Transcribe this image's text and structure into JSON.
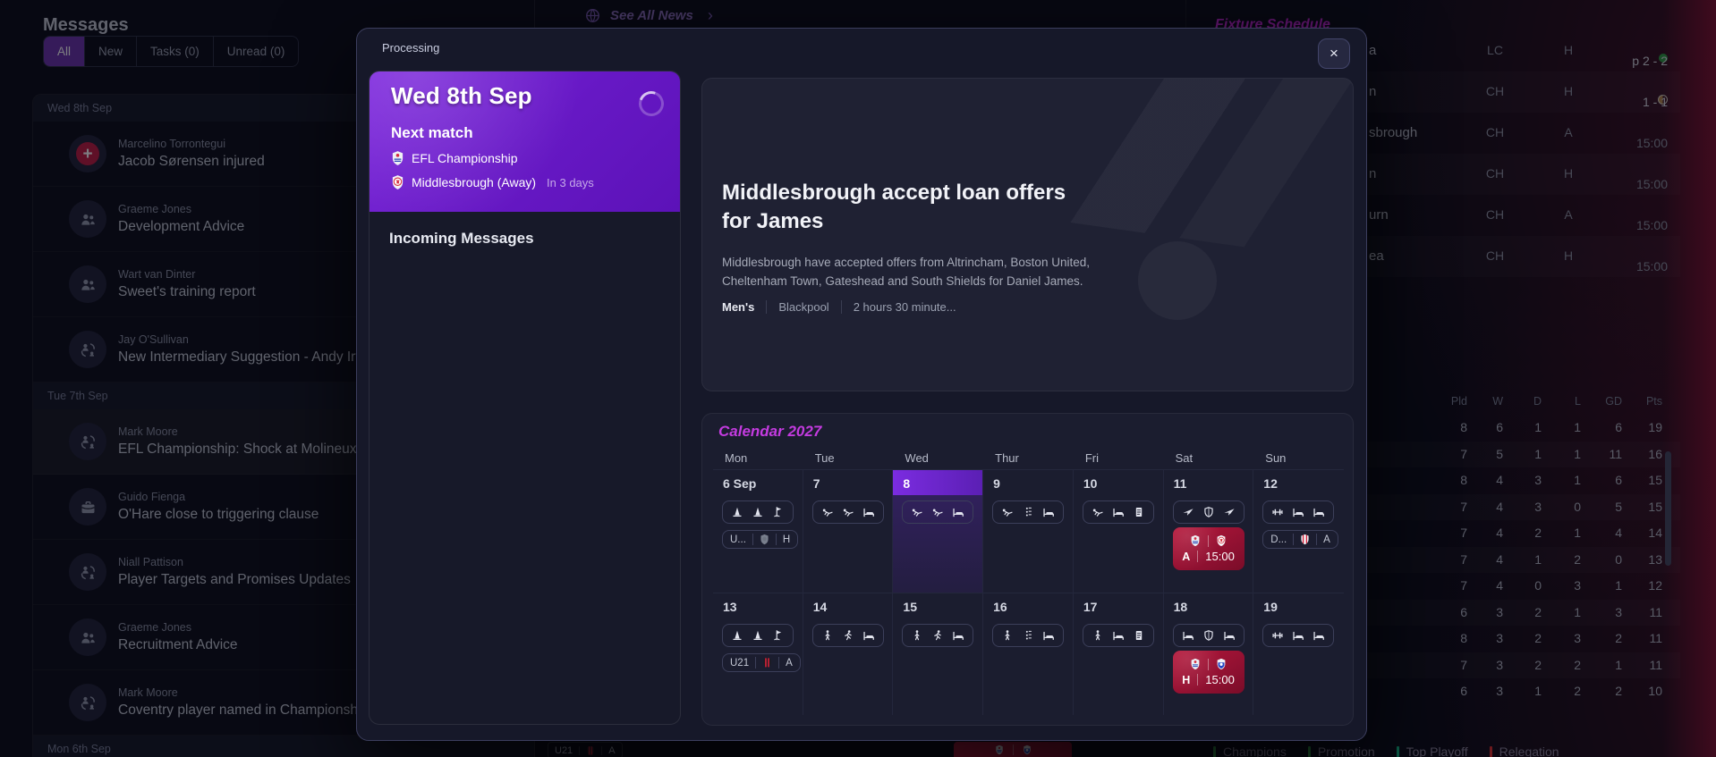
{
  "colors": {
    "accent_purple": "#7b24dd",
    "magenta": "#c43be0",
    "match_red": "#a81232",
    "win_green": "#2f9e44",
    "promotion_green": "#2f9e44",
    "playoff_teal": "#12b886",
    "relegation_red": "#e03131"
  },
  "background": {
    "messages": {
      "title": "Messages",
      "tabs": [
        {
          "label": "All",
          "selected": true
        },
        {
          "label": "New",
          "selected": false
        },
        {
          "label": "Tasks (0)",
          "selected": false
        },
        {
          "label": "Unread (0)",
          "selected": false
        }
      ],
      "groups": [
        {
          "date": "Wed 8th Sep",
          "items": [
            {
              "sender": "Marcelino Torrontegui",
              "subject": "Jacob Sørensen injured",
              "icon": "injury",
              "selected": false
            },
            {
              "sender": "Graeme Jones",
              "subject": "Development Advice",
              "icon": "people",
              "selected": false
            },
            {
              "sender": "Wart van Dinter",
              "subject": "Sweet's training report",
              "icon": "people",
              "selected": false
            },
            {
              "sender": "Jay O'Sullivan",
              "subject": "New Intermediary Suggestion - Andy Irv",
              "icon": "transfer",
              "selected": false
            }
          ]
        },
        {
          "date": "Tue 7th Sep",
          "items": [
            {
              "sender": "Mark Moore",
              "subject": "EFL Championship: Shock at Molineux",
              "icon": "transfer",
              "selected": true
            },
            {
              "sender": "Guido Fienga",
              "subject": "O'Hare close to triggering clause",
              "icon": "briefcase",
              "selected": false
            },
            {
              "sender": "Niall Pattison",
              "subject": "Player Targets and Promises Updates",
              "icon": "transfer",
              "selected": false
            },
            {
              "sender": "Graeme Jones",
              "subject": "Recruitment Advice",
              "icon": "people",
              "selected": false
            },
            {
              "sender": "Mark Moore",
              "subject": "Coventry player named in Championshi",
              "icon": "transfer",
              "selected": false
            }
          ]
        },
        {
          "date": "Mon 6th Sep",
          "items": []
        }
      ]
    },
    "news_bar": {
      "label": "See All News",
      "chevron": "›"
    },
    "fixture_schedule": {
      "title": "Fixture Schedule",
      "rows": [
        {
          "opponent": "a",
          "comp": "LC",
          "venue": "H",
          "result": "p 2 - 2",
          "indicator": "win"
        },
        {
          "opponent": "n",
          "comp": "CH",
          "venue": "H",
          "result": "1 - 1",
          "indicator": "draw"
        },
        {
          "opponent": "sbrough",
          "comp": "CH",
          "venue": "A",
          "result": "15:00",
          "indicator": "none"
        },
        {
          "opponent": "n",
          "comp": "CH",
          "venue": "H",
          "result": "15:00",
          "indicator": "none"
        },
        {
          "opponent": "urn",
          "comp": "CH",
          "venue": "A",
          "result": "15:00",
          "indicator": "none"
        },
        {
          "opponent": "ea",
          "comp": "CH",
          "venue": "H",
          "result": "15:00",
          "indicator": "none"
        }
      ]
    },
    "league_table": {
      "headers": [
        "Pld",
        "W",
        "D",
        "L",
        "GD",
        "Pts"
      ],
      "rows": [
        [
          8,
          6,
          1,
          1,
          6,
          19
        ],
        [
          7,
          5,
          1,
          1,
          11,
          16
        ],
        [
          8,
          4,
          3,
          1,
          6,
          15
        ],
        [
          7,
          4,
          3,
          0,
          5,
          15
        ],
        [
          7,
          4,
          2,
          1,
          4,
          14
        ],
        [
          7,
          4,
          1,
          2,
          0,
          13
        ],
        [
          7,
          4,
          0,
          3,
          1,
          12
        ],
        [
          6,
          3,
          2,
          1,
          3,
          11
        ],
        [
          8,
          3,
          2,
          3,
          2,
          11
        ],
        [
          7,
          3,
          2,
          2,
          1,
          11
        ],
        [
          6,
          3,
          1,
          2,
          2,
          10
        ]
      ],
      "legend": [
        {
          "label": "Champions",
          "color": "#2f9e44"
        },
        {
          "label": "Promotion",
          "color": "#2f9e44"
        },
        {
          "label": "Top Playoff",
          "color": "#12b886"
        },
        {
          "label": "Relegation",
          "color": "#e03131"
        }
      ]
    },
    "bottom_strip": {
      "pill": [
        "U21",
        "crest-bournemouth",
        "A"
      ]
    }
  },
  "modal": {
    "status": "Processing",
    "close_label": "×",
    "next_match": {
      "date": "Wed 8th Sep",
      "heading": "Next match",
      "competition": "EFL Championship",
      "opponent": "Middlesbrough (Away)",
      "countdown": "In 3 days"
    },
    "incoming": {
      "heading": "Incoming Messages"
    },
    "news": {
      "title": "Middlesbrough accept loan offers for James",
      "body": "Middlesbrough have accepted offers from Altrincham, Boston United, Cheltenham Town, Gateshead and South Shields for Daniel James.",
      "tags": [
        "Men's",
        "Blackpool",
        "2 hours 30 minute..."
      ]
    },
    "calendar": {
      "title": "Calendar 2027",
      "days": [
        "Mon",
        "Tue",
        "Wed",
        "Thur",
        "Fri",
        "Sat",
        "Sun"
      ],
      "cells": [
        {
          "date": "6 Sep",
          "icons": [
            "cone",
            "cone",
            "flag"
          ],
          "strip": [
            "U...",
            "crest-grey",
            "H"
          ]
        },
        {
          "date": "7",
          "icons": [
            "stretch",
            "stretch",
            "bed"
          ]
        },
        {
          "date": "8",
          "highlight": true,
          "icons": [
            "stretch",
            "stretch",
            "bed"
          ]
        },
        {
          "date": "9",
          "icons": [
            "stretch",
            "drill",
            "bed"
          ]
        },
        {
          "date": "10",
          "icons": [
            "stretch",
            "bed",
            "doc"
          ]
        },
        {
          "date": "11",
          "icons": [
            "plane",
            "shield",
            "plane"
          ],
          "match": {
            "badge": "crest-efl",
            "crest": "crest-boro",
            "venue": "A",
            "time": "15:00"
          }
        },
        {
          "date": "12",
          "icons": [
            "gym",
            "bed",
            "bed"
          ],
          "strip": [
            "D...",
            "crest-stoke",
            "A"
          ]
        },
        {
          "date": "13",
          "icons": [
            "cone",
            "cone",
            "flag"
          ],
          "strip": [
            "U21",
            "crest-bournemouth",
            "A"
          ]
        },
        {
          "date": "14",
          "icons": [
            "walk",
            "run",
            "bed"
          ]
        },
        {
          "date": "15",
          "icons": [
            "walk",
            "run",
            "bed"
          ]
        },
        {
          "date": "16",
          "icons": [
            "walk",
            "drill",
            "bed"
          ]
        },
        {
          "date": "17",
          "icons": [
            "walk",
            "bed",
            "doc"
          ]
        },
        {
          "date": "18",
          "icons": [
            "bed",
            "shield",
            "bed"
          ],
          "match": {
            "badge": "crest-efl",
            "crest": "crest-ipswich",
            "venue": "H",
            "time": "15:00"
          }
        },
        {
          "date": "19",
          "icons": [
            "gym",
            "bed",
            "bed"
          ]
        }
      ]
    }
  }
}
